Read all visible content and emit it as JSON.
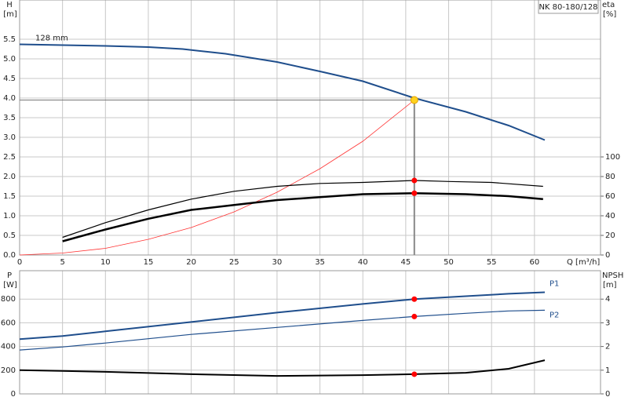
{
  "chart_data": [
    {
      "type": "line",
      "label": "NK 80-180/128",
      "y_title": "H",
      "y_unit": "[m]",
      "y2_title": "eta",
      "y2_unit": "[%]",
      "x_title": "Q [m³/h]",
      "xlim": [
        0,
        67.7
      ],
      "xticks": [
        0,
        5,
        10,
        15,
        20,
        25,
        30,
        35,
        40,
        45,
        50,
        55,
        60
      ],
      "ylim": [
        0,
        6.5
      ],
      "yticks": [
        {
          "value": 0,
          "label": "0.0"
        },
        0.5,
        {
          "value": 1,
          "label": "1.0"
        },
        1.5,
        {
          "value": 2,
          "label": "2.0"
        },
        2.5,
        {
          "value": 3,
          "label": "3.0"
        },
        3.5,
        {
          "value": 4,
          "label": "4.0"
        },
        4.5,
        {
          "value": 5,
          "label": "5.0"
        },
        5.5
      ],
      "y2lim": [
        0,
        260
      ],
      "y2ticks": [
        0,
        20,
        40,
        60,
        80,
        100
      ],
      "grid": true,
      "duty_point": {
        "x": 46,
        "y": 3.95
      },
      "series": [
        {
          "name": "128 mm",
          "color": "#1f4e8c",
          "width": 2,
          "x": [
            0,
            5,
            10,
            15,
            19,
            24,
            30,
            35,
            40,
            46,
            52,
            57,
            61.2
          ],
          "values": [
            5.37,
            5.35,
            5.33,
            5.3,
            5.25,
            5.13,
            4.92,
            4.68,
            4.43,
            4.0,
            3.65,
            3.3,
            2.93
          ]
        },
        {
          "color": "#ff3333",
          "width": 0.8,
          "x": [
            0,
            5,
            10,
            15,
            20,
            25,
            30,
            35,
            40,
            46
          ],
          "values": [
            0,
            0.05,
            0.17,
            0.4,
            0.7,
            1.1,
            1.6,
            2.2,
            2.9,
            3.95
          ]
        },
        {
          "color": "#000000",
          "width": 1.2,
          "axis": "y2",
          "dot": true,
          "x": [
            5,
            10,
            15,
            20,
            25,
            30,
            35,
            40,
            46,
            50,
            55,
            61
          ],
          "values": [
            18,
            33,
            46,
            57,
            65,
            70,
            73,
            74,
            76,
            75,
            74,
            70
          ]
        },
        {
          "color": "#000000",
          "width": 2.5,
          "axis": "y2",
          "dot": true,
          "x": [
            5,
            10,
            15,
            20,
            25,
            30,
            35,
            40,
            46,
            52,
            57,
            61
          ],
          "values": [
            14,
            26,
            37,
            46,
            51,
            56,
            59,
            62,
            63,
            62,
            60,
            57
          ]
        }
      ]
    },
    {
      "type": "line",
      "y_title": "P",
      "y_unit": "[W]",
      "y2_title": "NPSH",
      "y2_unit": "[m]",
      "xlim": [
        0,
        67.7
      ],
      "ylim": [
        0,
        1040
      ],
      "yticks": [
        0,
        200,
        400,
        600,
        800
      ],
      "y2lim": [
        0,
        5.2
      ],
      "y2ticks": [
        0,
        1,
        2,
        3,
        4
      ],
      "grid": true,
      "series": [
        {
          "name": "P1",
          "color": "#1f4e8c",
          "width": 2,
          "dot": true,
          "x": [
            0,
            5,
            10,
            20,
            30,
            40,
            46,
            52,
            57,
            61.2
          ],
          "values": [
            462,
            488,
            528,
            607,
            686,
            759,
            800,
            825,
            845,
            858
          ]
        },
        {
          "name": "P2",
          "color": "#1f4e8c",
          "width": 1.2,
          "dot": true,
          "x": [
            0,
            5,
            10,
            20,
            30,
            40,
            46,
            52,
            57,
            61.2
          ],
          "values": [
            370,
            396,
            429,
            502,
            561,
            620,
            653,
            680,
            700,
            706
          ]
        },
        {
          "color": "#000000",
          "width": 2,
          "axis": "y2",
          "dot": true,
          "x": [
            0,
            5,
            10,
            20,
            30,
            40,
            46,
            52,
            57,
            61.2
          ],
          "values": [
            1.0,
            0.97,
            0.93,
            0.83,
            0.76,
            0.79,
            0.83,
            0.89,
            1.06,
            1.42
          ]
        }
      ]
    }
  ]
}
